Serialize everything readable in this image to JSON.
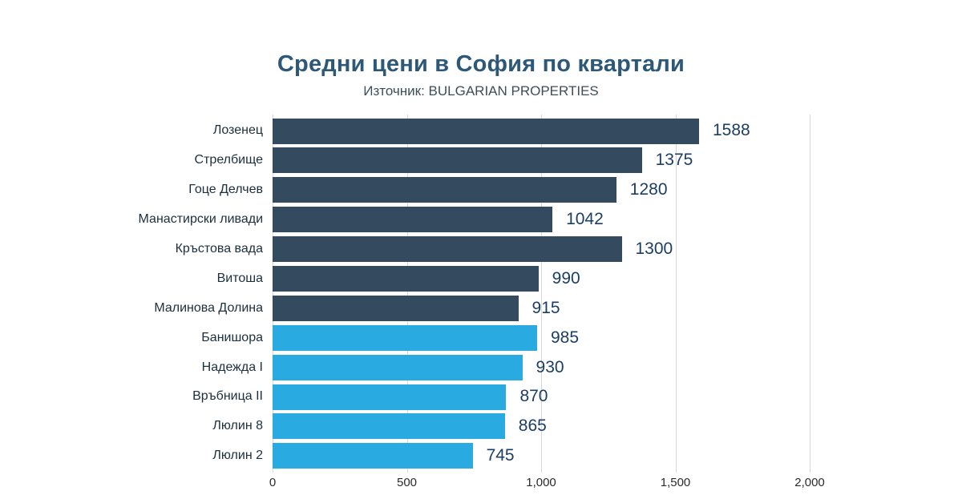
{
  "header": {
    "title": "Средни цени в София по квартали",
    "subtitle": "Източник: BULGARIAN PROPERTIES"
  },
  "chart_data": {
    "type": "bar",
    "orientation": "horizontal",
    "title": "Средни цени в София по квартали",
    "subtitle": "Източник: BULGARIAN PROPERTIES",
    "xlim": [
      0,
      2000
    ],
    "x_tick_values": [
      0,
      500,
      1000,
      1500,
      2000
    ],
    "x_tick_labels": [
      "0",
      "500",
      "1,000",
      "1,500",
      "2,000"
    ],
    "grid": true,
    "legend": "none",
    "colors": {
      "dark": "#344a5e",
      "light": "#29abe2"
    },
    "bars": [
      {
        "label": "Лозенец",
        "value": 1588,
        "color_key": "dark"
      },
      {
        "label": "Стрелбище",
        "value": 1375,
        "color_key": "dark"
      },
      {
        "label": "Гоце Делчев",
        "value": 1280,
        "color_key": "dark"
      },
      {
        "label": "Манастирски ливади",
        "value": 1042,
        "color_key": "dark"
      },
      {
        "label": "Кръстова вада",
        "value": 1300,
        "color_key": "dark"
      },
      {
        "label": "Витоша",
        "value": 990,
        "color_key": "dark"
      },
      {
        "label": "Малинова Долина",
        "value": 915,
        "color_key": "dark"
      },
      {
        "label": "Банишора",
        "value": 985,
        "color_key": "light"
      },
      {
        "label": "Надежда I",
        "value": 930,
        "color_key": "light"
      },
      {
        "label": "Връбница II",
        "value": 870,
        "color_key": "light"
      },
      {
        "label": "Люлин 8",
        "value": 865,
        "color_key": "light"
      },
      {
        "label": "Люлин 2",
        "value": 745,
        "color_key": "light"
      }
    ]
  }
}
